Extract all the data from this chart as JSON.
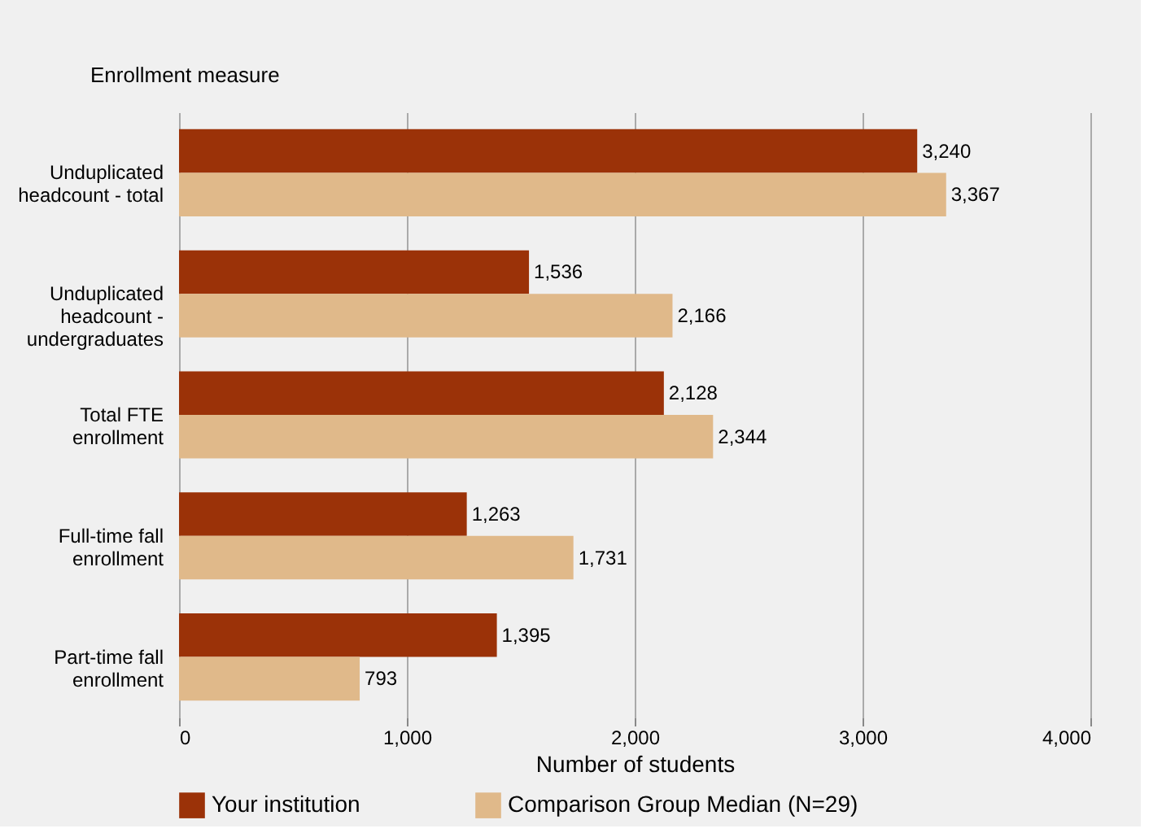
{
  "chart_data": {
    "type": "bar",
    "orientation": "horizontal",
    "ylabel": "Enrollment measure",
    "xlabel": "Number of students",
    "categories": [
      "Unduplicated headcount - total",
      "Unduplicated headcount - undergraduates",
      "Total FTE enrollment",
      "Full-time fall enrollment",
      "Part-time fall enrollment"
    ],
    "series": [
      {
        "name": "Your institution",
        "color": "#9b3208",
        "values": [
          3240,
          1536,
          2128,
          1263,
          1395
        ],
        "value_labels": [
          "3,240",
          "1,536",
          "2,128",
          "1,263",
          "1,395"
        ]
      },
      {
        "name": "Comparison Group Median (N=29)",
        "color": "#e0b98a",
        "values": [
          3367,
          2166,
          2344,
          1731,
          793
        ],
        "value_labels": [
          "3,367",
          "2,166",
          "2,344",
          "1,731",
          "793"
        ]
      }
    ],
    "xlim": [
      0,
      4000
    ],
    "xticks": [
      0,
      {
        "value": 1000,
        "label": "1,000"
      },
      {
        "value": 2000,
        "label": "2,000"
      },
      {
        "value": 3000,
        "label": "3,000"
      },
      {
        "value": 4000,
        "label": "4,000"
      }
    ],
    "grid": "x",
    "legend": "bottom left"
  }
}
